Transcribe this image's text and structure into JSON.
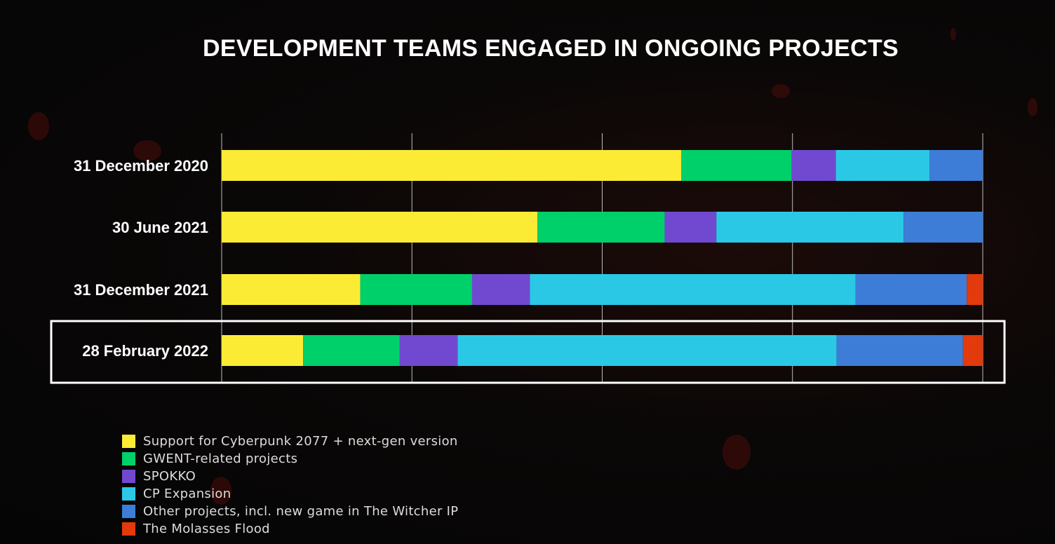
{
  "chart_data": {
    "type": "bar",
    "orientation": "horizontal",
    "stacked": true,
    "normalized": true,
    "title": "DEVELOPMENT TEAMS ENGAGED IN ONGOING PROJECTS",
    "categories": [
      "31 December 2020",
      "30 June 2021",
      "31 December 2021",
      "28 February 2022"
    ],
    "highlighted_category": "28 February 2022",
    "xlim": [
      0,
      100
    ],
    "gridlines": [
      0,
      25,
      50,
      75,
      100
    ],
    "grid": true,
    "series": [
      {
        "name": "Support for Cyberpunk 2077 + next-gen version",
        "color": "#FCEB35",
        "values": [
          60.4,
          41.5,
          18.2,
          10.7
        ]
      },
      {
        "name": "GWENT-related projects",
        "color": "#00D06A",
        "values": [
          14.5,
          16.7,
          14.7,
          12.7
        ]
      },
      {
        "name": "SPOKKO",
        "color": "#7049D0",
        "values": [
          5.8,
          6.8,
          7.6,
          7.6
        ]
      },
      {
        "name": "CP Expansion",
        "color": "#2BC8E6",
        "values": [
          12.3,
          24.6,
          42.8,
          49.8
        ]
      },
      {
        "name": "Other projects, incl. new game in The Witcher IP",
        "color": "#3D7DD7",
        "values": [
          7.0,
          10.4,
          14.6,
          16.6
        ]
      },
      {
        "name": "The Molasses Flood",
        "color": "#E23A0B",
        "values": [
          0,
          0,
          2.1,
          2.6
        ]
      }
    ],
    "legend_position": "bottom-left"
  }
}
